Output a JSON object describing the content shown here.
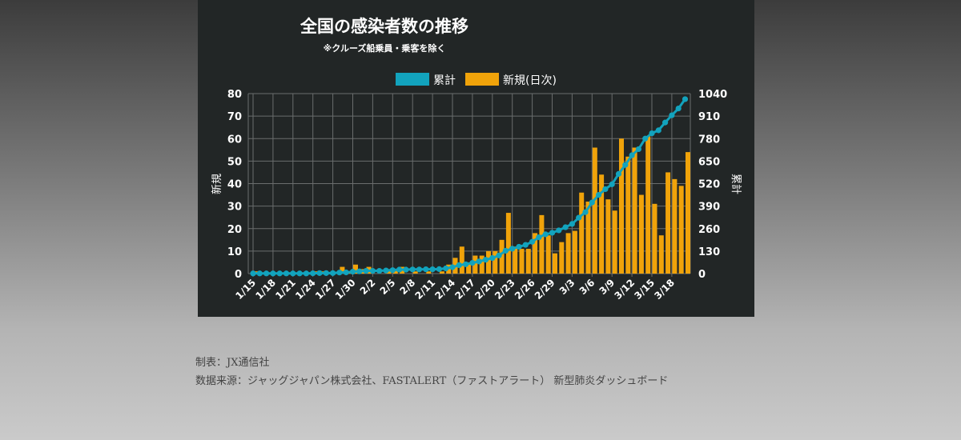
{
  "chart_data": {
    "type": "bar+line",
    "title": "全国の感染者数の推移",
    "subtitle": "※クルーズ船乗員・乗客を除く",
    "legend": [
      {
        "name": "累計",
        "color": "#12a3bd"
      },
      {
        "name": "新規(日次)",
        "color": "#f0a30a"
      }
    ],
    "legend_position": "top",
    "ylabel_left": "新規",
    "ylabel_right": "累計",
    "ylim_left": [
      0,
      80
    ],
    "ylim_right": [
      0,
      1040
    ],
    "yticks_left": [
      "0",
      "10",
      "20",
      "30",
      "40",
      "50",
      "60",
      "70",
      "80"
    ],
    "yticks_right": [
      "0",
      "130",
      "260",
      "390",
      "520",
      "650",
      "780",
      "910",
      "1040"
    ],
    "grid": true,
    "x": [
      "1/15",
      "1/16",
      "1/17",
      "1/18",
      "1/19",
      "1/20",
      "1/21",
      "1/22",
      "1/23",
      "1/24",
      "1/25",
      "1/26",
      "1/27",
      "1/28",
      "1/29",
      "1/30",
      "1/31",
      "2/1",
      "2/2",
      "2/3",
      "2/4",
      "2/5",
      "2/6",
      "2/7",
      "2/8",
      "2/9",
      "2/10",
      "2/11",
      "2/12",
      "2/13",
      "2/14",
      "2/15",
      "2/16",
      "2/17",
      "2/18",
      "2/19",
      "2/20",
      "2/21",
      "2/22",
      "2/23",
      "2/24",
      "2/25",
      "2/26",
      "2/27",
      "2/28",
      "2/29",
      "3/1",
      "3/2",
      "3/3",
      "3/4",
      "3/5",
      "3/6",
      "3/7",
      "3/8",
      "3/9",
      "3/10",
      "3/11",
      "3/12",
      "3/13",
      "3/14",
      "3/15",
      "3/16",
      "3/17",
      "3/18",
      "3/19",
      "3/20"
    ],
    "xtick_labels": [
      "1/15",
      "1/18",
      "1/21",
      "1/24",
      "1/27",
      "1/30",
      "2/2",
      "2/5",
      "2/8",
      "2/11",
      "2/14",
      "2/17",
      "2/20",
      "2/23",
      "2/26",
      "2/29",
      "3/3",
      "3/6",
      "3/9",
      "3/12",
      "3/15",
      "3/18"
    ],
    "series": [
      {
        "name": "新規(日次)",
        "type": "bar",
        "axis": "left",
        "values": [
          1,
          0,
          0,
          0,
          0,
          0,
          0,
          0,
          0,
          1,
          1,
          0,
          0,
          3,
          1,
          4,
          2,
          3,
          0,
          0,
          2,
          2,
          3,
          0,
          1,
          0,
          1,
          0,
          1,
          4,
          7,
          12,
          5,
          8,
          8,
          10,
          10,
          15,
          27,
          12,
          11,
          11,
          18,
          26,
          17,
          9,
          14,
          18,
          19,
          36,
          32,
          56,
          44,
          33,
          28,
          60,
          52,
          56,
          35,
          61,
          31,
          17,
          45,
          42,
          39,
          54
        ]
      },
      {
        "name": "累計",
        "type": "line",
        "axis": "right",
        "values": [
          1,
          1,
          1,
          1,
          1,
          1,
          1,
          1,
          1,
          2,
          3,
          3,
          3,
          6,
          7,
          11,
          13,
          16,
          16,
          16,
          18,
          20,
          23,
          23,
          24,
          24,
          25,
          25,
          26,
          30,
          37,
          49,
          54,
          62,
          70,
          80,
          90,
          105,
          132,
          144,
          155,
          166,
          184,
          210,
          227,
          236,
          250,
          268,
          287,
          323,
          355,
          411,
          455,
          488,
          516,
          576,
          628,
          684,
          719,
          780,
          811,
          828,
          873,
          915,
          954,
          1008
        ]
      }
    ]
  },
  "footer": {
    "credit": "制表：JX通信社",
    "source": "数据来源：ジャッグジャパン株式会社、FASTALERT（ファストアラート） 新型肺炎ダッシュボード"
  }
}
